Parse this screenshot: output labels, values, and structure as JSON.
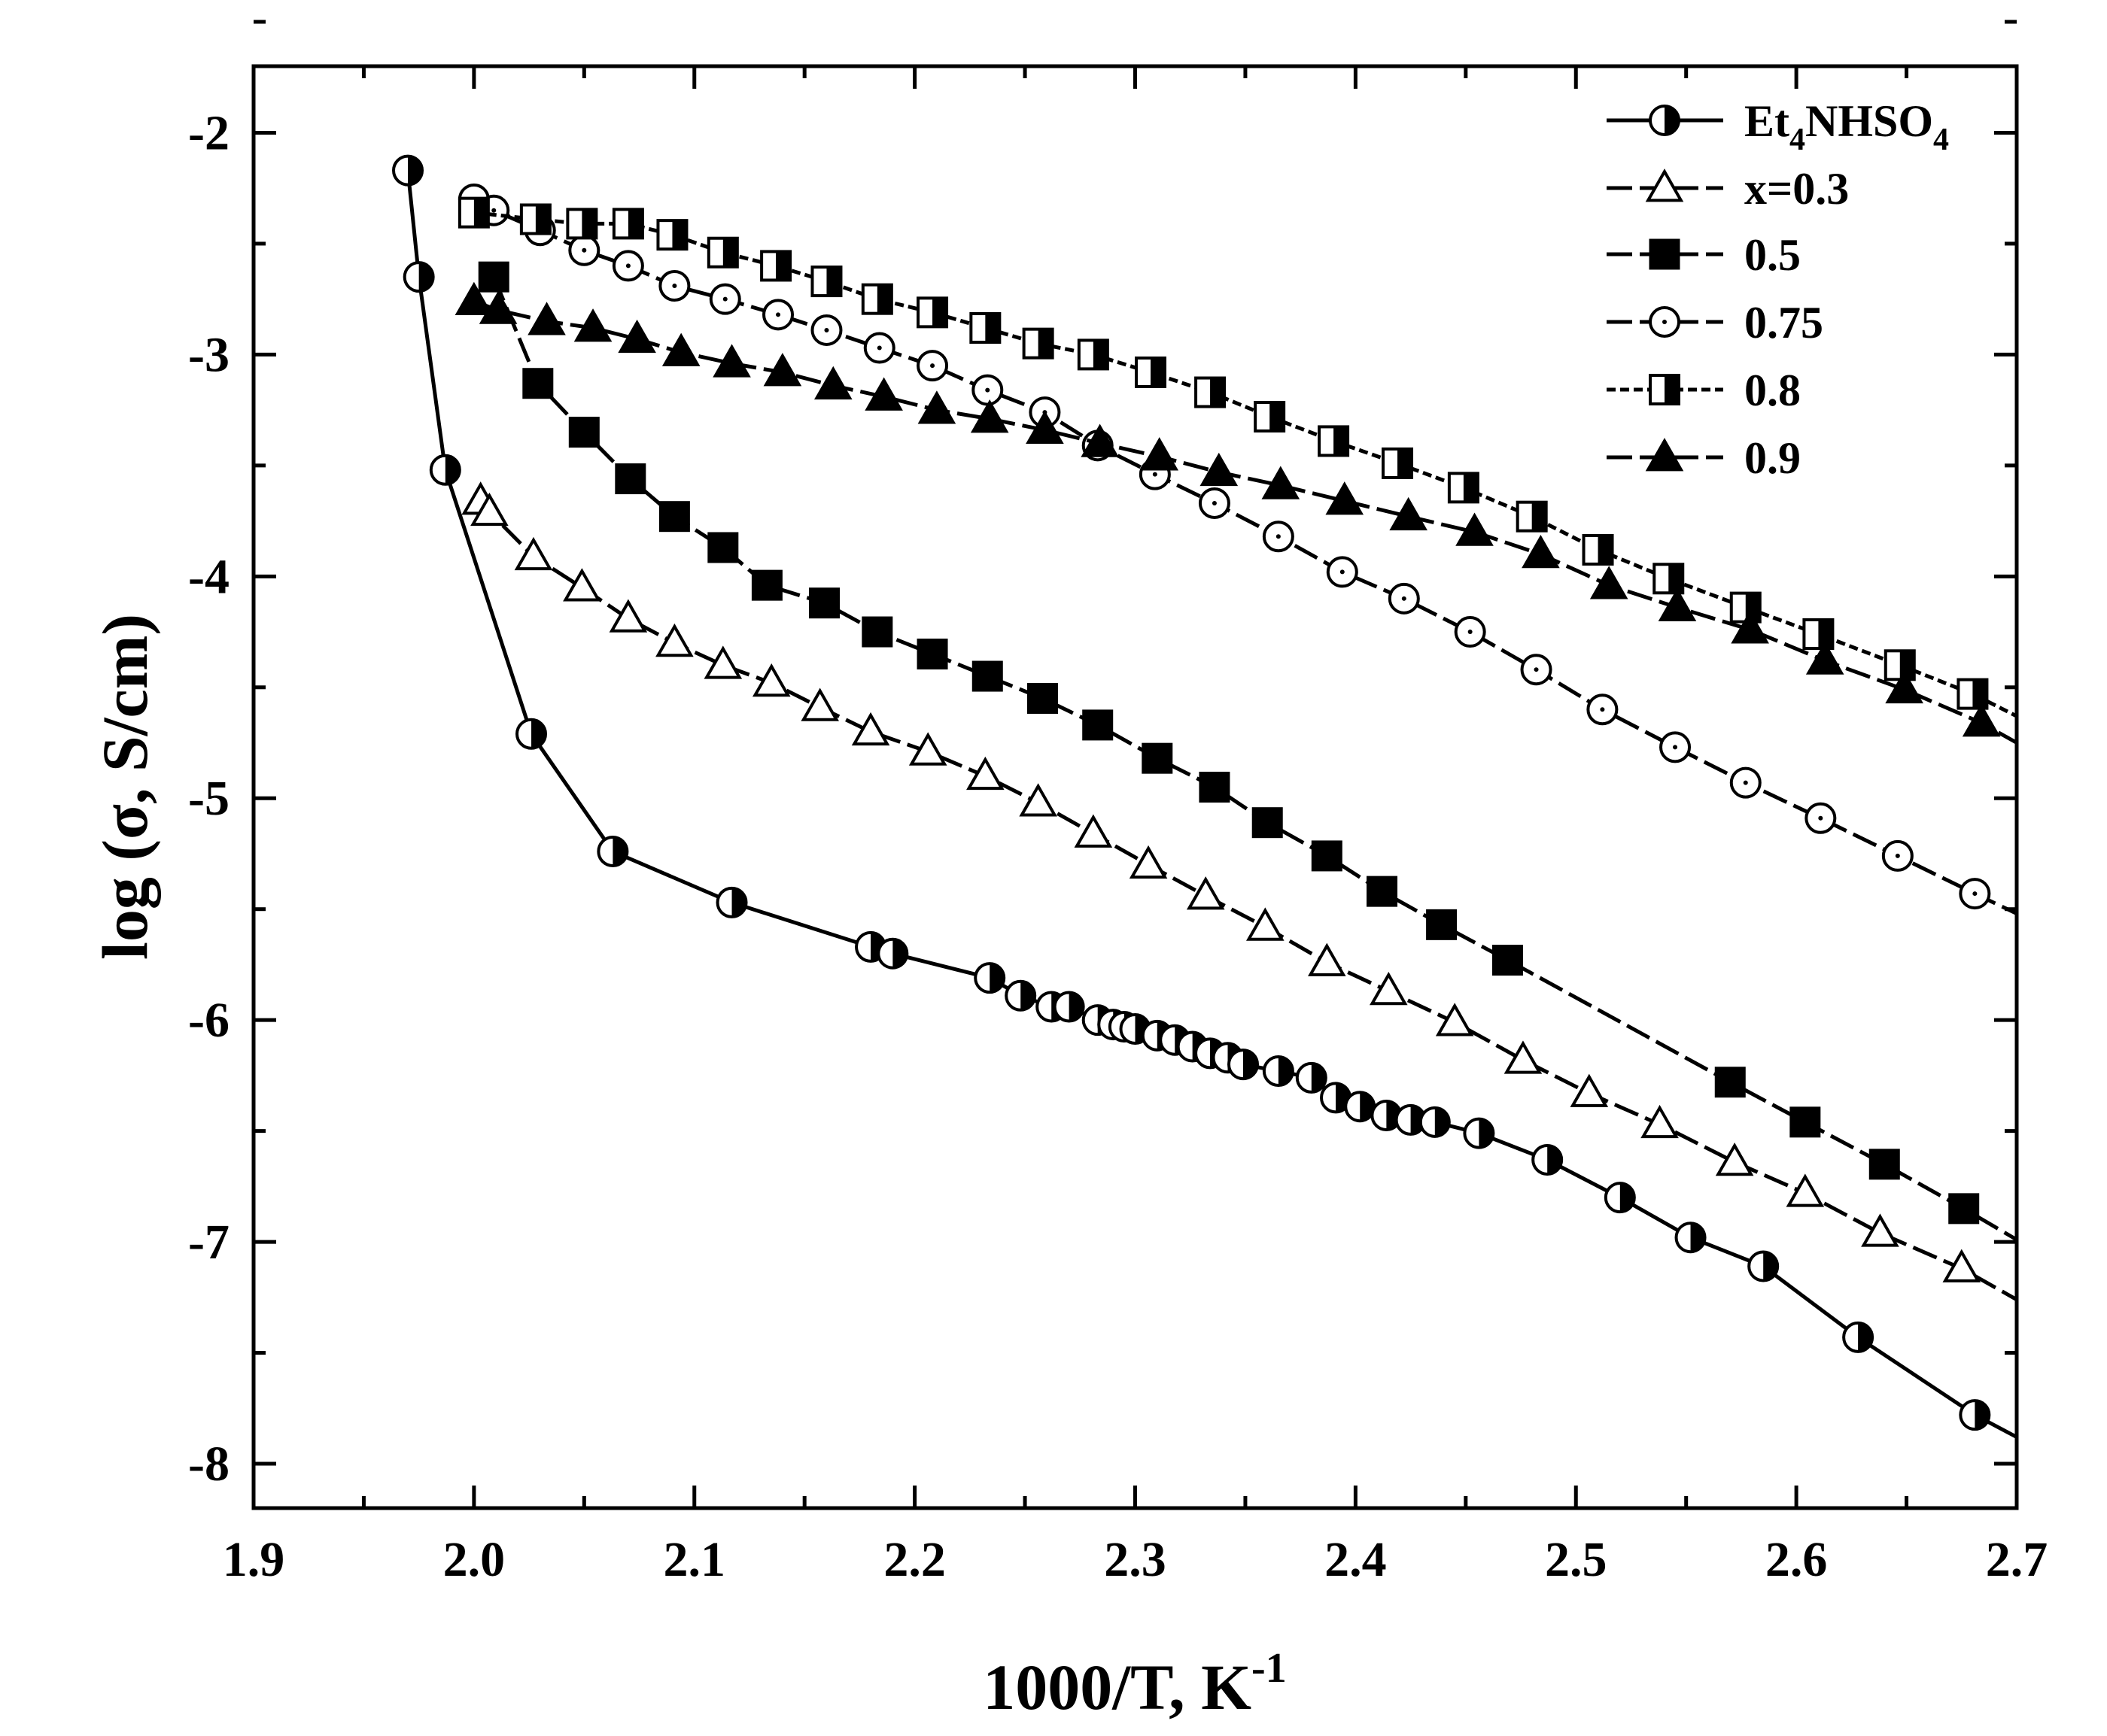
{
  "chart_data": {
    "type": "line",
    "title": "",
    "xlabel": "1000/T, K",
    "xlabel_superscript": "-1",
    "ylabel": "log (σ, S/cm)",
    "xlim": [
      1.9,
      2.7
    ],
    "ylim": [
      -8.2,
      -1.7
    ],
    "x_ticks": [
      "1.9",
      "2.0",
      "2.1",
      "2.2",
      "2.3",
      "2.4",
      "2.5",
      "2.6",
      "2.7"
    ],
    "y_ticks": [
      "-2",
      "-3",
      "-4",
      "-5",
      "-6",
      "-7",
      "-8"
    ],
    "grid": false,
    "legend_position": "top-right",
    "series": [
      {
        "name_main": "Et",
        "name_sub1": "4",
        "name_mid": "NHSO",
        "name_sub2": "4",
        "marker": "circle-half",
        "line": "solid",
        "x": [
          1.97,
          1.975,
          1.987,
          2.026,
          2.063,
          2.117,
          2.18,
          2.19,
          2.234,
          2.248,
          2.262,
          2.27,
          2.283,
          2.29,
          2.295,
          2.3,
          2.31,
          2.318,
          2.326,
          2.334,
          2.342,
          2.349,
          2.365,
          2.38,
          2.391,
          2.402,
          2.414,
          2.425,
          2.436,
          2.456,
          2.487,
          2.52,
          2.552,
          2.585,
          2.628,
          2.681,
          2.7
        ],
        "y": [
          -2.17,
          -2.65,
          -3.52,
          -4.71,
          -5.24,
          -5.47,
          -5.67,
          -5.7,
          -5.81,
          -5.89,
          -5.94,
          -5.94,
          -6.0,
          -6.02,
          -6.03,
          -6.04,
          -6.07,
          -6.09,
          -6.12,
          -6.15,
          -6.17,
          -6.2,
          -6.23,
          -6.26,
          -6.35,
          -6.39,
          -6.43,
          -6.45,
          -6.46,
          -6.51,
          -6.63,
          -6.8,
          -6.98,
          -7.11,
          -7.43,
          -7.78,
          -7.88
        ]
      },
      {
        "name": "x=0.3",
        "marker": "triangle-open",
        "line": "dash",
        "x": [
          2.003,
          2.007,
          2.027,
          2.049,
          2.07,
          2.091,
          2.113,
          2.135,
          2.157,
          2.18,
          2.206,
          2.232,
          2.256,
          2.281,
          2.306,
          2.332,
          2.359,
          2.387,
          2.415,
          2.445,
          2.476,
          2.506,
          2.538,
          2.572,
          2.604,
          2.638,
          2.675,
          2.7
        ],
        "y": [
          -3.66,
          -3.71,
          -3.91,
          -4.05,
          -4.19,
          -4.3,
          -4.4,
          -4.48,
          -4.59,
          -4.7,
          -4.79,
          -4.9,
          -5.02,
          -5.16,
          -5.3,
          -5.44,
          -5.58,
          -5.74,
          -5.87,
          -6.01,
          -6.18,
          -6.33,
          -6.47,
          -6.64,
          -6.78,
          -6.96,
          -7.12,
          -7.26
        ]
      },
      {
        "name": "0.5",
        "marker": "square-filled",
        "line": "dash",
        "x": [
          2.009,
          2.029,
          2.05,
          2.071,
          2.091,
          2.113,
          2.133,
          2.159,
          2.183,
          2.208,
          2.233,
          2.258,
          2.283,
          2.31,
          2.336,
          2.36,
          2.387,
          2.412,
          2.439,
          2.469,
          2.57,
          2.604,
          2.64,
          2.676,
          2.7
        ],
        "y": [
          -2.65,
          -3.13,
          -3.35,
          -3.56,
          -3.73,
          -3.87,
          -4.04,
          -4.12,
          -4.25,
          -4.35,
          -4.45,
          -4.55,
          -4.67,
          -4.82,
          -4.95,
          -5.11,
          -5.26,
          -5.42,
          -5.57,
          -5.73,
          -6.28,
          -6.46,
          -6.65,
          -6.85,
          -6.99
        ]
      },
      {
        "name": "0.75",
        "marker": "circle-dot",
        "line": "dash",
        "x": [
          2.0,
          2.009,
          2.03,
          2.05,
          2.07,
          2.091,
          2.114,
          2.138,
          2.16,
          2.184,
          2.208,
          2.233,
          2.259,
          2.283,
          2.309,
          2.336,
          2.365,
          2.394,
          2.422,
          2.452,
          2.482,
          2.512,
          2.545,
          2.577,
          2.611,
          2.646,
          2.681,
          2.7
        ],
        "y": [
          -2.3,
          -2.35,
          -2.44,
          -2.53,
          -2.6,
          -2.69,
          -2.75,
          -2.82,
          -2.89,
          -2.97,
          -3.05,
          -3.16,
          -3.26,
          -3.41,
          -3.54,
          -3.67,
          -3.82,
          -3.98,
          -4.1,
          -4.25,
          -4.42,
          -4.6,
          -4.77,
          -4.93,
          -5.09,
          -5.26,
          -5.43,
          -5.52
        ]
      },
      {
        "name": "0.8",
        "marker": "square-half",
        "line": "dot",
        "x": [
          2.0,
          2.028,
          2.049,
          2.07,
          2.09,
          2.113,
          2.137,
          2.16,
          2.183,
          2.208,
          2.232,
          2.256,
          2.281,
          2.307,
          2.334,
          2.361,
          2.39,
          2.419,
          2.449,
          2.48,
          2.51,
          2.542,
          2.577,
          2.61,
          2.647,
          2.68,
          2.7
        ],
        "y": [
          -2.36,
          -2.39,
          -2.41,
          -2.41,
          -2.46,
          -2.54,
          -2.6,
          -2.67,
          -2.75,
          -2.81,
          -2.88,
          -2.95,
          -3.0,
          -3.08,
          -3.17,
          -3.28,
          -3.39,
          -3.49,
          -3.6,
          -3.73,
          -3.88,
          -4.01,
          -4.14,
          -4.26,
          -4.4,
          -4.53,
          -4.63
        ]
      },
      {
        "name": "0.9",
        "marker": "triangle-filled",
        "line": "dash",
        "x": [
          2.0,
          2.011,
          2.033,
          2.054,
          2.074,
          2.094,
          2.117,
          2.14,
          2.163,
          2.186,
          2.21,
          2.234,
          2.259,
          2.284,
          2.311,
          2.338,
          2.366,
          2.395,
          2.424,
          2.454,
          2.484,
          2.515,
          2.546,
          2.579,
          2.613,
          2.649,
          2.684,
          2.7
        ],
        "y": [
          -2.76,
          -2.8,
          -2.85,
          -2.88,
          -2.93,
          -2.99,
          -3.04,
          -3.08,
          -3.14,
          -3.19,
          -3.25,
          -3.29,
          -3.34,
          -3.4,
          -3.46,
          -3.53,
          -3.59,
          -3.66,
          -3.73,
          -3.8,
          -3.9,
          -4.04,
          -4.14,
          -4.24,
          -4.38,
          -4.51,
          -4.66,
          -4.75
        ]
      }
    ]
  }
}
